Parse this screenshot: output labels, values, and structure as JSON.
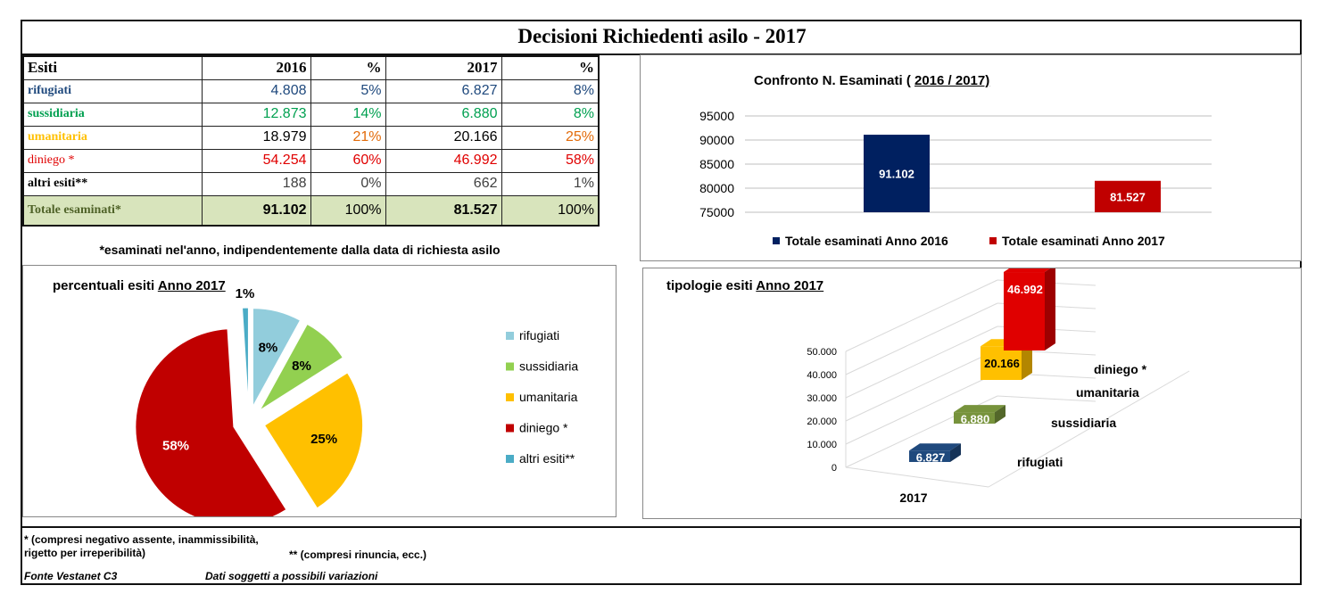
{
  "title": "Decisioni Richiedenti asilo - 2017",
  "table": {
    "headers": [
      "Esiti",
      "2016",
      "%",
      "2017",
      "%"
    ],
    "rows": [
      {
        "label": "rifugiati",
        "v2016": "4.808",
        "p2016": "5%",
        "v2017": "6.827",
        "p2017": "8%",
        "color": "#1f497d"
      },
      {
        "label": "sussidiaria",
        "v2016": "12.873",
        "p2016": "14%",
        "v2017": "6.880",
        "p2017": "8%",
        "color": "#00a050"
      },
      {
        "label": "umanitaria",
        "v2016": "18.979",
        "p2016": "21%",
        "v2017": "20.166",
        "p2017": "25%",
        "color": "#ffc000"
      },
      {
        "label": "diniego *",
        "v2016": "54.254",
        "p2016": "60%",
        "v2017": "46.992",
        "p2017": "58%",
        "color": "#e00000"
      },
      {
        "label": "altri esiti**",
        "v2016": "188",
        "p2016": "0%",
        "v2017": "662",
        "p2017": "1%",
        "color": "#000000"
      }
    ],
    "total": {
      "label": "Totale esaminati*",
      "v2016": "91.102",
      "p2016": "100%",
      "v2017": "81.527",
      "p2017": "100%"
    }
  },
  "table_note": "*esaminati nel'anno, indipendentemente dalla data di richiesta asilo",
  "chart_data": [
    {
      "type": "bar",
      "title_prefix": "Confronto N. Esaminati  ( ",
      "title_underlined": "2016 /  2017)",
      "categories": [
        "Totale esaminati Anno 2016",
        "Totale esaminati Anno 2017"
      ],
      "values": [
        91102,
        81527
      ],
      "value_labels": [
        "91.102",
        "81.527"
      ],
      "colors": [
        "#002060",
        "#c00000"
      ],
      "ylim": [
        75000,
        95000
      ],
      "yticks": [
        75000,
        80000,
        85000,
        90000,
        95000
      ],
      "ytick_labels": [
        "75000",
        "80000",
        "85000",
        "90000",
        "95000"
      ],
      "grid": true,
      "legend": "bottom"
    },
    {
      "type": "pie",
      "title_prefix": "percentuali esiti ",
      "title_underlined": "Anno 2017",
      "labels": [
        "rifugiati",
        "sussidiaria",
        "umanitaria",
        "diniego *",
        "altri esiti**"
      ],
      "values": [
        8,
        8,
        25,
        58,
        1
      ],
      "value_labels": [
        "8%",
        "8%",
        "25%",
        "58%",
        "1%"
      ],
      "colors": [
        "#92cddc",
        "#92d050",
        "#ffc000",
        "#c00000",
        "#4bacc6"
      ],
      "legend": "right"
    },
    {
      "type": "bar",
      "title_prefix": "tipologie esiti ",
      "title_underlined": "Anno 2017",
      "categories": [
        "rifugiati",
        "sussidiaria",
        "umanitaria",
        "diniego *"
      ],
      "x_label": "2017",
      "values": [
        6827,
        6880,
        20166,
        46992
      ],
      "value_labels": [
        "6.827",
        "6.880",
        "20.166",
        "46.992"
      ],
      "colors": [
        "#1f497d",
        "#77933c",
        "#ffc000",
        "#e00000"
      ],
      "ylim": [
        0,
        50000
      ],
      "yticks": [
        0,
        10000,
        20000,
        30000,
        40000,
        50000
      ],
      "ytick_labels": [
        "0",
        "10.000",
        "20.000",
        "30.000",
        "40.000",
        "50.000"
      ],
      "grid": true
    }
  ],
  "footer": {
    "note1a": "* (compresi negativo assente, inammissibilità,",
    "note1b": "rigetto per irreperibilità)",
    "note2": "** (compresi rinuncia, ecc.)",
    "source": "Fonte Vestanet C3",
    "disclaimer": "Dati soggetti a possibili variazioni"
  }
}
